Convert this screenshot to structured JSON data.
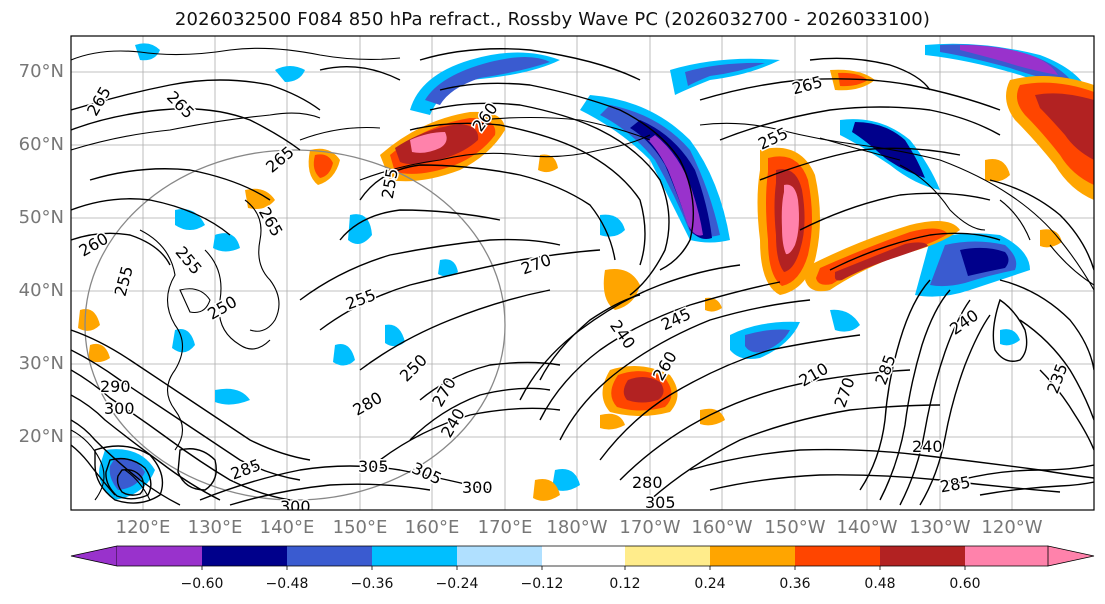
{
  "title": "2026032500 F084 850 hPa refract., Rossby Wave PC (2026032700 - 2026033100)",
  "lat_labels": [
    "70°N",
    "60°N",
    "50°N",
    "40°N",
    "30°N",
    "20°N"
  ],
  "lon_labels": [
    "120°E",
    "130°E",
    "140°E",
    "150°E",
    "160°E",
    "170°E",
    "180°W",
    "170°W",
    "160°W",
    "150°W",
    "140°W",
    "130°W",
    "120°W"
  ],
  "contour_labels": [
    "265",
    "265",
    "265",
    "260",
    "255",
    "265",
    "255",
    "265",
    "255",
    "250",
    "260",
    "255",
    "255",
    "270",
    "240",
    "245",
    "250",
    "270",
    "280",
    "240",
    "260",
    "305",
    "300",
    "300",
    "305",
    "305",
    "285",
    "280",
    "270",
    "210",
    "240",
    "285",
    "240",
    "235",
    "290",
    "300",
    "285"
  ],
  "colorbar": {
    "labels": [
      "−0.60",
      "−0.48",
      "−0.36",
      "−0.24",
      "−0.12",
      "0.12",
      "0.24",
      "0.36",
      "0.48",
      "0.60"
    ],
    "colors": [
      "#9932cc",
      "#00008b",
      "#3a5bd0",
      "#00bfff",
      "#b0e0ff",
      "#ffffff",
      "#ffec8b",
      "#ffa500",
      "#ff4500",
      "#b22222",
      "#ff82ab"
    ]
  },
  "colors": {
    "purple": "#9932cc",
    "navy": "#00008b",
    "blue": "#3a5bd0",
    "cyan": "#00bfff",
    "lightblue": "#b0e0ff",
    "yellow": "#ffec8b",
    "orange": "#ffa500",
    "red": "#ff4500",
    "darkred": "#b22222",
    "pink": "#ff82ab"
  }
}
